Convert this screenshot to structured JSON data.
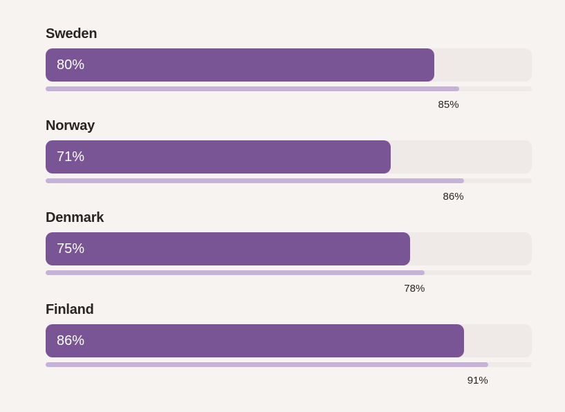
{
  "chart_data": {
    "type": "bar",
    "orientation": "horizontal",
    "title": "",
    "xlim": [
      0,
      100
    ],
    "grid": false,
    "categories": [
      "Sweden",
      "Norway",
      "Denmark",
      "Finland"
    ],
    "series": [
      {
        "values": [
          80,
          71,
          75,
          86
        ],
        "value_labels": [
          "80%",
          "71%",
          "75%",
          "86%"
        ],
        "color": "#7a5596"
      },
      {
        "values": [
          85,
          86,
          78,
          91
        ],
        "value_labels": [
          "85%",
          "86%",
          "78%",
          "91%"
        ],
        "color": "#c4b3d6"
      }
    ],
    "colors": {
      "background": "#f6f3f1",
      "track": "#efe9e8",
      "label_text": "#2b2222",
      "bar_text": "#ffffff"
    }
  }
}
